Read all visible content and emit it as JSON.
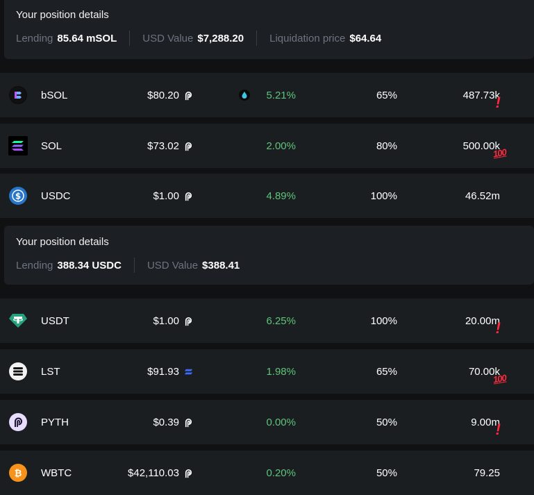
{
  "positions": [
    {
      "title": "Your position details",
      "items": [
        {
          "label": "Lending",
          "value": "85.64 mSOL"
        },
        {
          "label": "USD Value",
          "value": "$7,288.20"
        },
        {
          "label": "Liquidation price",
          "value": "$64.64"
        }
      ]
    },
    {
      "title": "Your position details",
      "items": [
        {
          "label": "Lending",
          "value": "388.34 USDC"
        },
        {
          "label": "USD Value",
          "value": "$388.41"
        }
      ]
    }
  ],
  "assets": [
    {
      "name": "bSOL",
      "price": "$80.20",
      "price_oracle_icon": "pyth-icon",
      "apy": "5.21%",
      "apy_icon": "drop-icon",
      "ltv": "65%",
      "liquidity": "487.73k",
      "flag": "!"
    },
    {
      "name": "SOL",
      "price": "$73.02",
      "price_oracle_icon": "pyth-icon",
      "apy": "2.00%",
      "ltv": "80%",
      "liquidity": "500.00k",
      "flag": "100"
    },
    {
      "name": "USDC",
      "price": "$1.00",
      "price_oracle_icon": "pyth-icon",
      "apy": "4.89%",
      "ltv": "100%",
      "liquidity": "46.52m",
      "flag": ""
    },
    {
      "name": "USDT",
      "price": "$1.00",
      "price_oracle_icon": "pyth-icon",
      "apy": "6.25%",
      "ltv": "100%",
      "liquidity": "20.00m",
      "flag": "!"
    },
    {
      "name": "LST",
      "price": "$91.93",
      "price_oracle_icon": "switchboard-icon",
      "apy": "1.98%",
      "ltv": "65%",
      "liquidity": "70.00k",
      "flag": "100"
    },
    {
      "name": "PYTH",
      "price": "$0.39",
      "price_oracle_icon": "pyth-icon",
      "apy": "0.00%",
      "ltv": "50%",
      "liquidity": "9.00m",
      "flag": "!"
    },
    {
      "name": "WBTC",
      "price": "$42,110.03",
      "price_oracle_icon": "pyth-icon",
      "apy": "0.20%",
      "ltv": "50%",
      "liquidity": "79.25",
      "flag": ""
    }
  ],
  "colors": {
    "background": "#0f1113",
    "row": "#1b1e21",
    "panel": "#1c1f24",
    "apy_green": "#5fc47a",
    "flag_red": "#ff2a3d",
    "muted": "#6d7480"
  }
}
